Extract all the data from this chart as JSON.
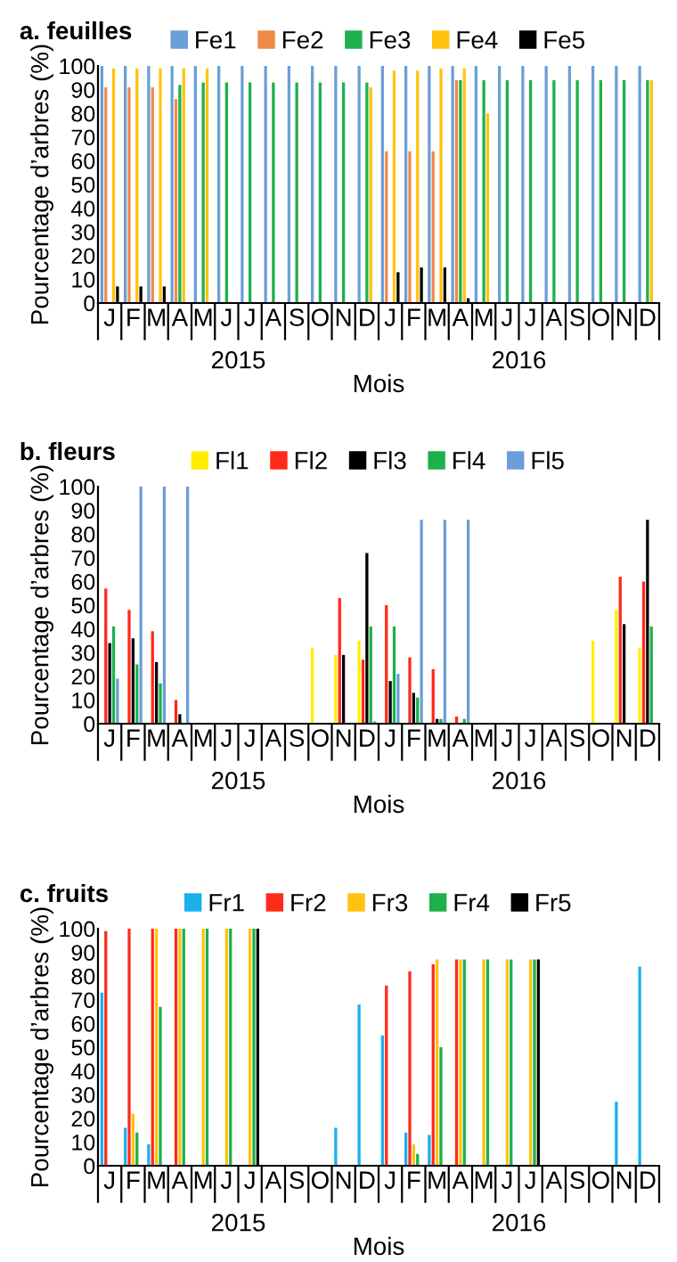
{
  "chart_data": [
    {
      "type": "bar",
      "title": "a. feuilles",
      "xlabel": "Mois",
      "ylabel": "Pourcentage d’arbres (%)",
      "annotations": [
        "2015",
        "2016"
      ],
      "legend": "top",
      "ylim": [
        0,
        100
      ],
      "yticks": [
        0,
        10,
        20,
        30,
        40,
        50,
        60,
        70,
        80,
        90,
        100
      ],
      "categories": [
        "J",
        "F",
        "M",
        "A",
        "M",
        "J",
        "J",
        "A",
        "S",
        "O",
        "N",
        "D",
        "J",
        "F",
        "M",
        "A",
        "M",
        "J",
        "J",
        "A",
        "S",
        "O",
        "N",
        "D"
      ],
      "series": [
        {
          "name": "Fe1",
          "color": "#6a9fd8",
          "values": [
            100,
            100,
            100,
            100,
            100,
            100,
            100,
            100,
            100,
            100,
            100,
            100,
            100,
            100,
            100,
            100,
            100,
            100,
            100,
            100,
            100,
            100,
            100,
            100
          ]
        },
        {
          "name": "Fe2",
          "color": "#ef8a48",
          "values": [
            91,
            91,
            91,
            86,
            null,
            null,
            null,
            null,
            null,
            null,
            null,
            null,
            64,
            64,
            64,
            94,
            null,
            null,
            null,
            null,
            null,
            null,
            null,
            null
          ]
        },
        {
          "name": "Fe3",
          "color": "#1db04b",
          "values": [
            null,
            null,
            null,
            92,
            93,
            93,
            93,
            93,
            93,
            93,
            93,
            93,
            null,
            null,
            null,
            94,
            94,
            94,
            94,
            94,
            94,
            94,
            94,
            94
          ]
        },
        {
          "name": "Fe4",
          "color": "#ffc20e",
          "values": [
            99,
            99,
            99,
            99,
            99,
            null,
            null,
            null,
            null,
            null,
            null,
            91,
            98,
            98,
            99,
            99,
            80,
            null,
            null,
            null,
            null,
            null,
            null,
            94
          ]
        },
        {
          "name": "Fe5",
          "color": "#000000",
          "values": [
            7,
            7,
            7,
            null,
            null,
            null,
            null,
            null,
            null,
            null,
            null,
            null,
            13,
            15,
            15,
            2,
            null,
            null,
            null,
            null,
            null,
            null,
            null,
            null
          ]
        }
      ]
    },
    {
      "type": "bar",
      "title": "b. fleurs",
      "xlabel": "Mois",
      "ylabel": "Pourcentage d’arbres (%)",
      "annotations": [
        "2015",
        "2016"
      ],
      "legend": "top",
      "ylim": [
        0,
        100
      ],
      "yticks": [
        0,
        10,
        20,
        30,
        40,
        50,
        60,
        70,
        80,
        90,
        100
      ],
      "categories": [
        "J",
        "F",
        "M",
        "A",
        "M",
        "J",
        "J",
        "A",
        "S",
        "O",
        "N",
        "D",
        "J",
        "F",
        "M",
        "A",
        "M",
        "J",
        "J",
        "A",
        "S",
        "O",
        "N",
        "D"
      ],
      "series": [
        {
          "name": "Fl1",
          "color": "#ffee00",
          "values": [
            null,
            null,
            null,
            null,
            null,
            null,
            null,
            null,
            null,
            32,
            29,
            35,
            null,
            null,
            null,
            null,
            null,
            null,
            null,
            null,
            null,
            35,
            48,
            32
          ]
        },
        {
          "name": "Fl2",
          "color": "#ff2a1a",
          "values": [
            57,
            48,
            39,
            10,
            null,
            null,
            null,
            null,
            null,
            null,
            53,
            27,
            50,
            28,
            23,
            3,
            null,
            null,
            null,
            null,
            null,
            null,
            62,
            60
          ]
        },
        {
          "name": "Fl3",
          "color": "#000000",
          "values": [
            34,
            36,
            26,
            4,
            null,
            null,
            null,
            null,
            null,
            null,
            29,
            72,
            18,
            13,
            2,
            null,
            null,
            null,
            null,
            null,
            null,
            null,
            42,
            86
          ]
        },
        {
          "name": "Fl4",
          "color": "#1db04b",
          "values": [
            41,
            25,
            17,
            null,
            null,
            null,
            null,
            null,
            null,
            null,
            null,
            41,
            41,
            11,
            2,
            2,
            null,
            null,
            null,
            null,
            null,
            null,
            null,
            41
          ]
        },
        {
          "name": "Fl5",
          "color": "#6a9fd8",
          "values": [
            19,
            100,
            100,
            100,
            null,
            null,
            null,
            null,
            null,
            null,
            null,
            1,
            21,
            86,
            86,
            86,
            null,
            null,
            null,
            null,
            null,
            null,
            null,
            null
          ]
        }
      ]
    },
    {
      "type": "bar",
      "title": "c. fruits",
      "xlabel": "Mois",
      "ylabel": "Pourcentage d’arbres (%)",
      "annotations": [
        "2015",
        "2016"
      ],
      "legend": "top",
      "ylim": [
        0,
        100
      ],
      "yticks": [
        0,
        10,
        20,
        30,
        40,
        50,
        60,
        70,
        80,
        90,
        100
      ],
      "categories": [
        "J",
        "F",
        "M",
        "A",
        "M",
        "J",
        "J",
        "A",
        "S",
        "O",
        "N",
        "D",
        "J",
        "F",
        "M",
        "A",
        "M",
        "J",
        "J",
        "A",
        "S",
        "O",
        "N",
        "D"
      ],
      "series": [
        {
          "name": "Fr1",
          "color": "#1ab0ec",
          "values": [
            73,
            16,
            9,
            null,
            null,
            null,
            null,
            null,
            null,
            null,
            16,
            68,
            55,
            14,
            13,
            null,
            null,
            null,
            null,
            null,
            null,
            null,
            27,
            84
          ]
        },
        {
          "name": "Fr2",
          "color": "#ff2a1a",
          "values": [
            99,
            100,
            100,
            100,
            null,
            null,
            null,
            null,
            null,
            null,
            null,
            null,
            76,
            82,
            85,
            87,
            null,
            null,
            null,
            null,
            null,
            null,
            null,
            null
          ]
        },
        {
          "name": "Fr3",
          "color": "#ffc20e",
          "values": [
            null,
            22,
            100,
            100,
            100,
            100,
            100,
            null,
            null,
            null,
            null,
            null,
            null,
            9,
            87,
            87,
            87,
            87,
            87,
            null,
            null,
            null,
            null,
            null
          ]
        },
        {
          "name": "Fr4",
          "color": "#1db04b",
          "values": [
            null,
            14,
            67,
            100,
            100,
            100,
            100,
            null,
            null,
            null,
            null,
            null,
            null,
            5,
            50,
            87,
            87,
            87,
            87,
            null,
            null,
            null,
            null,
            null
          ]
        },
        {
          "name": "Fr5",
          "color": "#000000",
          "values": [
            null,
            null,
            null,
            null,
            null,
            null,
            100,
            null,
            null,
            null,
            null,
            null,
            null,
            null,
            null,
            null,
            null,
            null,
            87,
            null,
            null,
            null,
            null,
            null
          ]
        }
      ]
    }
  ]
}
